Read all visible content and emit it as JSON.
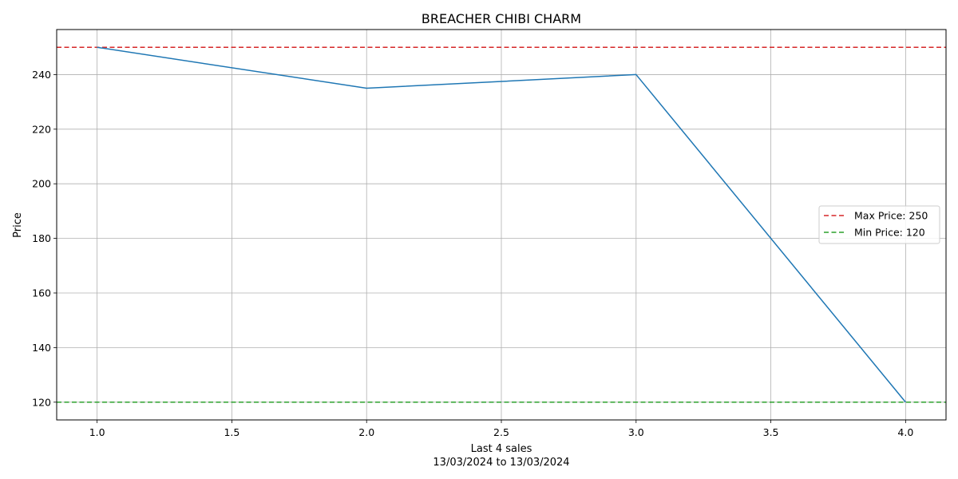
{
  "chart_data": {
    "type": "line",
    "title": "BREACHER CHIBI CHARM",
    "xlabel": "Last 4 sales",
    "xlabel_sub": "13/03/2024 to 13/03/2024",
    "ylabel": "Price",
    "xlim": [
      0.85,
      4.15
    ],
    "ylim": [
      113.5,
      256.5
    ],
    "x_ticks": [
      1.0,
      1.5,
      2.0,
      2.5,
      3.0,
      3.5,
      4.0
    ],
    "x_tick_labels": [
      "1.0",
      "1.5",
      "2.0",
      "2.5",
      "3.0",
      "3.5",
      "4.0"
    ],
    "y_ticks": [
      120,
      140,
      160,
      180,
      200,
      220,
      240
    ],
    "y_tick_labels": [
      "120",
      "140",
      "160",
      "180",
      "200",
      "220",
      "240"
    ],
    "grid": true,
    "series": [
      {
        "x": [
          1,
          2,
          3,
          4
        ],
        "values": [
          250,
          235,
          240,
          120
        ],
        "color": "#1f77b4",
        "style": "solid"
      }
    ],
    "reference_lines": [
      {
        "name": "Max Price: 250",
        "value": 250,
        "color": "#d62728",
        "style": "dashed"
      },
      {
        "name": "Min Price: 120",
        "value": 120,
        "color": "#2ca02c",
        "style": "dashed"
      }
    ],
    "legend": {
      "placement": "center-right",
      "entries": [
        "Max Price: 250",
        "Min Price: 120"
      ]
    }
  }
}
